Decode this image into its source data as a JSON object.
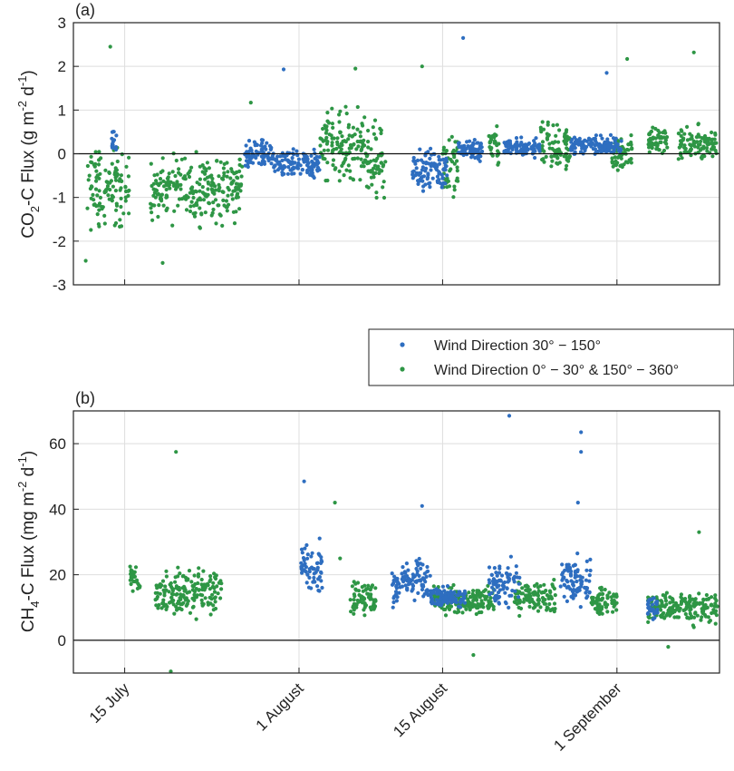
{
  "colors": {
    "series_a": "#2e6ec0",
    "series_b": "#2e9645",
    "grid": "#dedede",
    "axis": "#222222"
  },
  "legend": {
    "placement": "between-panels-right",
    "items": [
      {
        "label": "Wind Direction 30° − 150°",
        "color": "#2e6ec0"
      },
      {
        "label": "Wind Direction 0° − 30° & 150° − 360°",
        "color": "#2e9645"
      }
    ]
  },
  "date_ticks": {
    "labels": [
      "15 July",
      "1 August",
      "15 August",
      "1 September"
    ],
    "day_of_year": [
      196,
      213,
      227,
      244
    ]
  },
  "chart_data": [
    {
      "type": "scatter",
      "panel_label": "(a)",
      "ylabel": "CO2-C Flux (g m-2 d-1)",
      "xlim_day_of_year": [
        191,
        254
      ],
      "ylim": [
        -3,
        3
      ],
      "yticks": [
        "3",
        "2",
        "1",
        "0",
        "-1",
        "-2",
        "-3"
      ],
      "ytick_values": [
        3,
        2,
        1,
        0,
        -1,
        -2,
        -3
      ],
      "zero_line": true,
      "grid": true,
      "series": [
        {
          "name": "Wind Direction 30° − 150°",
          "clusters": [
            {
              "start": 194.7,
              "end": 195.2,
              "center": 0.3,
              "spread": 0.3
            },
            {
              "start": 207.7,
              "end": 210.5,
              "center": 0.0,
              "spread": 0.3
            },
            {
              "start": 210.5,
              "end": 215.0,
              "center": -0.2,
              "spread": 0.35
            },
            {
              "start": 224.0,
              "end": 227.5,
              "center": -0.4,
              "spread": 0.5
            },
            {
              "start": 228.5,
              "end": 231.0,
              "center": 0.1,
              "spread": 0.25
            },
            {
              "start": 233.0,
              "end": 236.5,
              "center": 0.15,
              "spread": 0.2
            },
            {
              "start": 239.5,
              "end": 243.5,
              "center": 0.2,
              "spread": 0.2
            },
            {
              "start": 243.5,
              "end": 244.5,
              "center": 0.15,
              "spread": 0.2
            }
          ],
          "points": [
            {
              "x": 211.5,
              "y": 1.93
            },
            {
              "x": 229.0,
              "y": 2.65
            },
            {
              "x": 243.0,
              "y": 1.85
            }
          ]
        },
        {
          "name": "Wind Direction 0° − 30° & 150° − 360°",
          "clusters": [
            {
              "start": 192.3,
              "end": 196.5,
              "center": -0.8,
              "spread": 0.9
            },
            {
              "start": 198.5,
              "end": 207.5,
              "center": -0.8,
              "spread": 0.75
            },
            {
              "start": 215.0,
              "end": 219.5,
              "center": 0.2,
              "spread": 0.8
            },
            {
              "start": 219.5,
              "end": 221.5,
              "center": -0.2,
              "spread": 0.8
            },
            {
              "start": 227.0,
              "end": 228.5,
              "center": -0.3,
              "spread": 0.8
            },
            {
              "start": 231.5,
              "end": 232.5,
              "center": 0.1,
              "spread": 0.5
            },
            {
              "start": 236.5,
              "end": 239.5,
              "center": 0.1,
              "spread": 0.6
            },
            {
              "start": 243.5,
              "end": 245.5,
              "center": 0.0,
              "spread": 0.45
            },
            {
              "start": 247.0,
              "end": 249.0,
              "center": 0.3,
              "spread": 0.3
            },
            {
              "start": 250.0,
              "end": 253.7,
              "center": 0.2,
              "spread": 0.4
            }
          ],
          "points": [
            {
              "x": 194.6,
              "y": 2.45
            },
            {
              "x": 208.3,
              "y": 1.17
            },
            {
              "x": 218.5,
              "y": 1.95
            },
            {
              "x": 225.0,
              "y": 2.0
            },
            {
              "x": 245.0,
              "y": 2.17
            },
            {
              "x": 251.5,
              "y": 2.32
            },
            {
              "x": 192.2,
              "y": -2.45
            },
            {
              "x": 199.7,
              "y": -2.5
            }
          ]
        }
      ]
    },
    {
      "type": "scatter",
      "panel_label": "(b)",
      "ylabel": "CH4-C Flux (mg m-2 d-1)",
      "xlim_day_of_year": [
        191,
        254
      ],
      "ylim": [
        -10,
        70
      ],
      "yticks": [
        "60",
        "40",
        "20",
        "0"
      ],
      "ytick_values": [
        60,
        40,
        20,
        0
      ],
      "zero_line": true,
      "grid": true,
      "series": [
        {
          "name": "Wind Direction 30° − 150°",
          "clusters": [
            {
              "start": 213.2,
              "end": 215.3,
              "center": 22,
              "spread": 8
            },
            {
              "start": 222.0,
              "end": 223.0,
              "center": 15,
              "spread": 6
            },
            {
              "start": 223.0,
              "end": 225.8,
              "center": 19,
              "spread": 6
            },
            {
              "start": 225.8,
              "end": 229.2,
              "center": 13,
              "spread": 3
            },
            {
              "start": 231.5,
              "end": 234.5,
              "center": 17,
              "spread": 7
            },
            {
              "start": 238.5,
              "end": 241.5,
              "center": 18,
              "spread": 8
            },
            {
              "start": 247.0,
              "end": 248.0,
              "center": 10,
              "spread": 3
            }
          ],
          "points": [
            {
              "x": 213.5,
              "y": 48.5
            },
            {
              "x": 225.0,
              "y": 41
            },
            {
              "x": 233.5,
              "y": 68.5
            },
            {
              "x": 240.5,
              "y": 63.5
            },
            {
              "x": 240.5,
              "y": 57.5
            },
            {
              "x": 240.2,
              "y": 42
            }
          ]
        },
        {
          "name": "Wind Direction 0° − 30° & 150° − 360°",
          "clusters": [
            {
              "start": 196.5,
              "end": 197.5,
              "center": 19,
              "spread": 4
            },
            {
              "start": 199.0,
              "end": 205.5,
              "center": 15,
              "spread": 7
            },
            {
              "start": 218.0,
              "end": 220.5,
              "center": 13,
              "spread": 5
            },
            {
              "start": 226.0,
              "end": 232.0,
              "center": 12,
              "spread": 4
            },
            {
              "start": 234.0,
              "end": 238.0,
              "center": 13,
              "spread": 5
            },
            {
              "start": 241.5,
              "end": 244.0,
              "center": 12,
              "spread": 4
            },
            {
              "start": 247.0,
              "end": 253.8,
              "center": 10,
              "spread": 5
            }
          ],
          "points": [
            {
              "x": 201.0,
              "y": 57.5
            },
            {
              "x": 200.5,
              "y": -9.5
            },
            {
              "x": 216.5,
              "y": 42
            },
            {
              "x": 217.0,
              "y": 25
            },
            {
              "x": 230.0,
              "y": -4.5
            },
            {
              "x": 249.0,
              "y": -2
            },
            {
              "x": 252.0,
              "y": 33
            }
          ]
        }
      ]
    }
  ]
}
